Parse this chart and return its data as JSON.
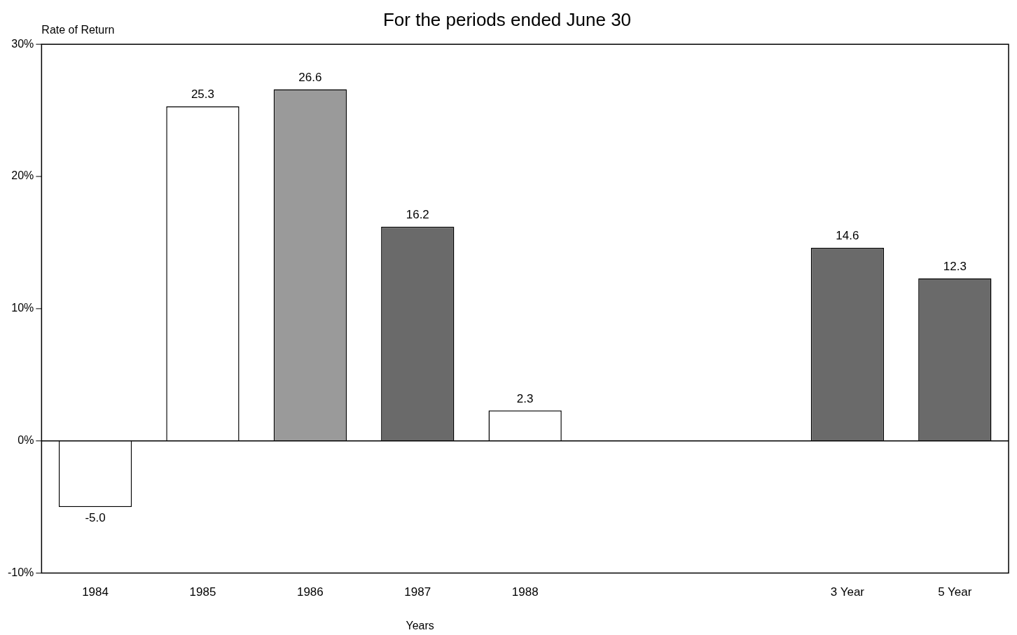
{
  "chart_data": {
    "type": "bar",
    "title": "For the periods ended June 30",
    "xlabel": "Years",
    "ylabel": "Rate of Return",
    "categories": [
      "1984",
      "1985",
      "1986",
      "1987",
      "1988",
      null,
      null,
      "3 Year",
      "5 Year"
    ],
    "values": [
      -5.0,
      25.3,
      26.6,
      16.2,
      2.3,
      null,
      null,
      14.6,
      12.3
    ],
    "value_labels": [
      "-5.0",
      "25.3",
      "26.6",
      "16.2",
      "2.3",
      null,
      null,
      "14.6",
      "12.3"
    ],
    "colors": [
      "#ffffff",
      "#ffffff",
      "#9a9a9a",
      "#6a6a6a",
      "#ffffff",
      null,
      null,
      "#6a6a6a",
      "#6a6a6a"
    ],
    "ylim": [
      -10,
      30
    ],
    "yticks": [
      {
        "value": -10,
        "label": "-10%"
      },
      {
        "value": 0,
        "label": "0%"
      },
      {
        "value": 10,
        "label": "10%"
      },
      {
        "value": 20,
        "label": "20%"
      },
      {
        "value": 30,
        "label": "30%"
      }
    ],
    "legend": false
  }
}
